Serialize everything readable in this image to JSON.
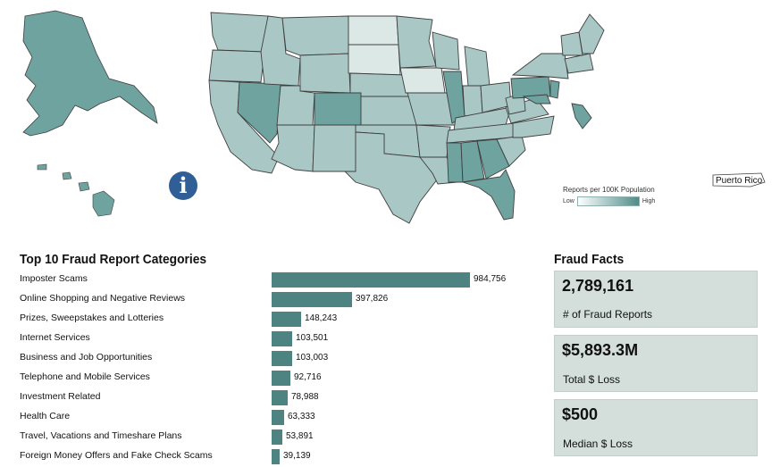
{
  "map": {
    "legend_title": "Reports per 100K Population",
    "legend_low": "Low",
    "legend_high": "High",
    "territory_label": "Puerto Rico",
    "info_icon": "i",
    "fill_light": "#dbe8e6",
    "fill_mid": "#a9c8c5",
    "fill_dark": "#6ea3a0",
    "stroke": "#3f3f3f"
  },
  "categories_section": {
    "title": "Top 10 Fraud Report Categories"
  },
  "facts_section": {
    "title": "Fraud Facts"
  },
  "chart_data": {
    "type": "bar",
    "orientation": "horizontal",
    "title": "Top 10 Fraud Report Categories",
    "categories": [
      "Imposter Scams",
      "Online Shopping and Negative Reviews",
      "Prizes, Sweepstakes and Lotteries",
      "Internet Services",
      "Business and Job Opportunities",
      "Telephone and Mobile Services",
      "Investment Related",
      "Health Care",
      "Travel, Vacations and Timeshare Plans",
      "Foreign Money Offers and Fake Check Scams"
    ],
    "values": [
      984756,
      397826,
      148243,
      103501,
      103003,
      92716,
      78988,
      63333,
      53891,
      39139
    ],
    "value_labels": [
      "984,756",
      "397,826",
      "148,243",
      "103,501",
      "103,003",
      "92,716",
      "78,988",
      "63,333",
      "53,891",
      "39,139"
    ],
    "bar_color": "#4d8482"
  },
  "facts": [
    {
      "value": "2,789,161",
      "label": "# of Fraud Reports"
    },
    {
      "value": "$5,893.3M",
      "label": "Total $ Loss"
    },
    {
      "value": "$500",
      "label": "Median $ Loss"
    }
  ]
}
